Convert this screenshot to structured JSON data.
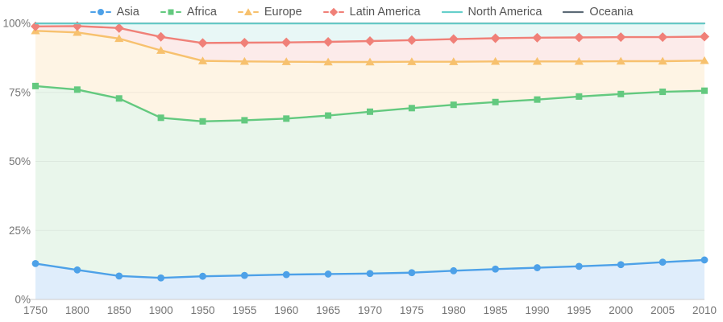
{
  "chart_data": {
    "type": "area",
    "subtype": "stacked-percentage-area",
    "title": "",
    "xlabel": "",
    "ylabel": "",
    "ylim": [
      0,
      100
    ],
    "grid": "faint horizontal gridlines at 25/50/75",
    "legend_position": "top-center",
    "stacking_note": "values are cumulative stacked line positions in percent, read from the plot",
    "x": [
      "1750",
      "1800",
      "1850",
      "1900",
      "1950",
      "1955",
      "1960",
      "1965",
      "1970",
      "1975",
      "1980",
      "1985",
      "1990",
      "1995",
      "2000",
      "2005",
      "2010"
    ],
    "series": [
      {
        "name": "Asia",
        "slug": "asia",
        "marker": "circle",
        "color": "#4da1e8",
        "area_color": "#dfedfb",
        "values_cumulative_pct": [
          13,
          10.7,
          8.5,
          7.8,
          8.4,
          8.7,
          9,
          9.2,
          9.4,
          9.7,
          10.4,
          11,
          11.5,
          12,
          12.6,
          13.5,
          14.3
        ]
      },
      {
        "name": "Africa",
        "slug": "africa",
        "marker": "square",
        "color": "#63c97f",
        "area_color": "#e9f6eb",
        "values_cumulative_pct": [
          77.3,
          76,
          72.8,
          65.8,
          64.5,
          64.9,
          65.5,
          66.6,
          68,
          69.3,
          70.5,
          71.5,
          72.4,
          73.5,
          74.4,
          75.2,
          75.6
        ]
      },
      {
        "name": "Europe",
        "slug": "europe",
        "marker": "triangle",
        "color": "#f7c16e",
        "area_color": "#fef4e4",
        "values_cumulative_pct": [
          97.3,
          96.7,
          94.5,
          90.2,
          86.4,
          86.2,
          86.1,
          86,
          86,
          86.1,
          86.1,
          86.2,
          86.2,
          86.2,
          86.3,
          86.3,
          86.5
        ]
      },
      {
        "name": "Latin America",
        "slug": "latin-america",
        "marker": "diamond",
        "color": "#f08078",
        "area_color": "#fcebea",
        "values_cumulative_pct": [
          98.9,
          99,
          98.3,
          95.1,
          92.9,
          93,
          93.1,
          93.3,
          93.6,
          93.9,
          94.3,
          94.6,
          94.8,
          94.9,
          95,
          95,
          95.2
        ]
      },
      {
        "name": "North America",
        "slug": "north-america",
        "marker": "line",
        "color": "#66cfcb",
        "area_color": "#e8f7f6",
        "values_cumulative_pct": [
          99.9,
          99.9,
          99.9,
          99.9,
          99.9,
          99.9,
          99.9,
          99.9,
          99.9,
          99.9,
          99.9,
          99.9,
          99.9,
          99.9,
          99.9,
          99.9,
          99.9
        ]
      },
      {
        "name": "Oceania",
        "slug": "oceania",
        "marker": "line",
        "color": "#5d6b77",
        "area_color": "#ffffff",
        "values_cumulative_pct": [
          100,
          100,
          100,
          100,
          100,
          100,
          100,
          100,
          100,
          100,
          100,
          100,
          100,
          100,
          100,
          100,
          100
        ]
      }
    ]
  },
  "axes": {
    "y_ticks": [
      {
        "label": "100%",
        "value": 100
      },
      {
        "label": "75%",
        "value": 75
      },
      {
        "label": "50%",
        "value": 50
      },
      {
        "label": "25%",
        "value": 25
      },
      {
        "label": "0%",
        "value": 0
      }
    ],
    "grid_values": [
      25,
      50,
      75
    ]
  },
  "style": {
    "axis_line_color": "#cccccc",
    "grid_line_color": "#000000",
    "grid_line_opacity": 0.05,
    "tick_text_color": "#757575",
    "legend_text_color": "#555555",
    "background": "#ffffff"
  }
}
